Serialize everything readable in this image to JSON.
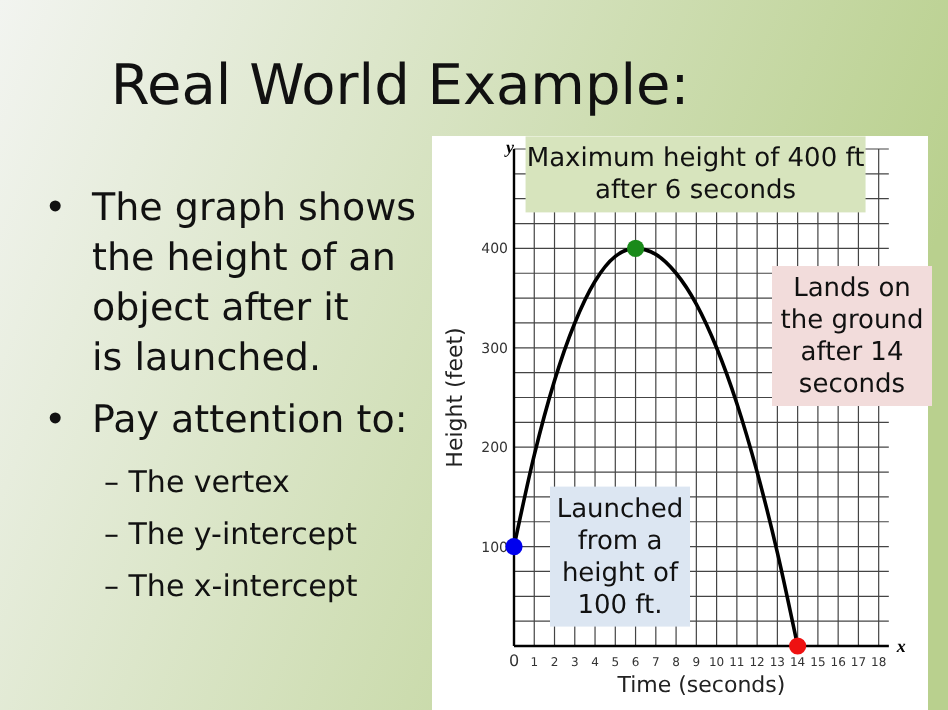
{
  "chart_data": {
    "type": "line",
    "title": "Real World Example:",
    "xlabel": "Time (seconds)",
    "ylabel": "Height (feet)",
    "xlim": [
      0,
      18.5
    ],
    "ylim": [
      0,
      500
    ],
    "xticks": [
      0,
      1,
      2,
      3,
      4,
      5,
      6,
      7,
      8,
      9,
      10,
      11,
      12,
      13,
      14,
      15,
      16,
      17,
      18
    ],
    "yticks": [
      {
        "value": 0,
        "label": null
      },
      {
        "value": 25,
        "label": null
      },
      {
        "value": 50,
        "label": null
      },
      {
        "value": 75,
        "label": null
      },
      100,
      {
        "value": 125,
        "label": null
      },
      {
        "value": 150,
        "label": null
      },
      {
        "value": 175,
        "label": null
      },
      200,
      {
        "value": 225,
        "label": null
      },
      {
        "value": 250,
        "label": null
      },
      {
        "value": 275,
        "label": null
      },
      300,
      {
        "value": 325,
        "label": null
      },
      {
        "value": 350,
        "label": null
      },
      {
        "value": 375,
        "label": null
      },
      400,
      {
        "value": 425,
        "label": null
      },
      {
        "value": 450,
        "label": null
      },
      {
        "value": 475,
        "label": null
      },
      {
        "value": 500,
        "label": null
      }
    ],
    "grid": true,
    "series": [
      {
        "color": "#000000",
        "x": [
          0,
          1,
          2,
          3,
          4,
          5,
          6,
          7,
          8,
          9,
          10,
          11,
          12,
          13,
          14
        ],
        "values": [
          100,
          192,
          267,
          325,
          367,
          392,
          400,
          394,
          375,
          344,
          300,
          244,
          175,
          94,
          0
        ]
      },
      {
        "type": "scatter",
        "marker": "circle",
        "x": [
          0,
          6,
          14
        ],
        "values": [
          100,
          400,
          0
        ],
        "colors": [
          "#0000ee",
          "#1a8a1a",
          "#ee1111"
        ]
      }
    ],
    "annotations": [
      "• The graph shows the height of an object after it is launched.",
      "• Pay attention to:",
      "– The vertex",
      "– The y-intercept",
      "– The x-intercept",
      "y",
      "x",
      {
        "text": "Maximum height of 400 ft after 6 seconds",
        "x": 6,
        "y": 400
      },
      {
        "text": "Launched from a height of 100 ft.",
        "x": 0,
        "y": 100
      },
      "Lands on the ground after 14 seconds"
    ]
  }
}
